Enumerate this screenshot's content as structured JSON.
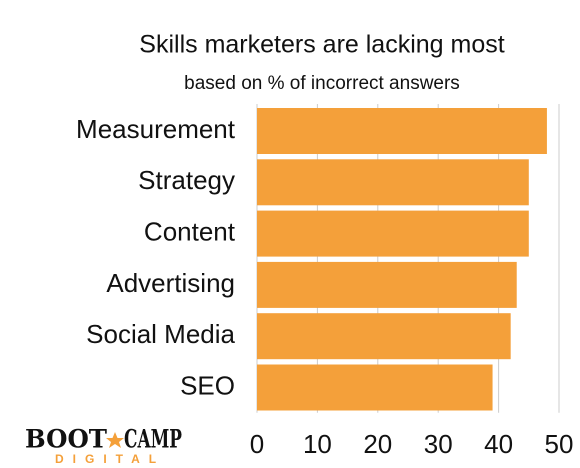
{
  "chart_data": {
    "type": "bar",
    "orientation": "horizontal",
    "title": "Skills marketers are lacking most",
    "subtitle": "based on % of incorrect answers",
    "categories": [
      "Measurement",
      "Strategy",
      "Content",
      "Advertising",
      "Social Media",
      "SEO"
    ],
    "values": [
      48,
      45,
      45,
      43,
      42,
      39
    ],
    "color": "#f4a03a",
    "xlim": [
      0,
      50
    ],
    "xticks": [
      0,
      10,
      20,
      30,
      40,
      50
    ],
    "grid": true
  },
  "logo": {
    "line1a": "BOOT",
    "line1b": "CAMP",
    "line2": "DIGITAL"
  }
}
